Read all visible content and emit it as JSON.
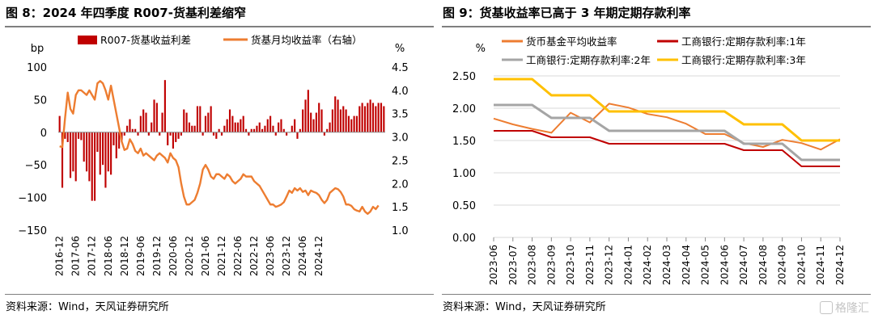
{
  "left": {
    "figure_title": "图 8：2024 年四季度 R007-货基利差缩窄",
    "source": "资料来源：Wind，天风证券研究所"
  },
  "right": {
    "figure_title": "图 9：货基收益率已高于 3 年期定期存款利率",
    "source": "资料来源：Wind，天风证券研究所"
  },
  "watermark_text": "格隆汇",
  "chart_data": [
    {
      "type": "bar",
      "title": "",
      "y_left_unit": "bp",
      "y_right_unit": "%",
      "ylim_left": [
        -150,
        100
      ],
      "yticks_left": [
        -150,
        -100,
        -50,
        0,
        50,
        100
      ],
      "ylim_right": [
        1.0,
        4.5
      ],
      "yticks_right": [
        1.0,
        1.5,
        2.0,
        2.5,
        3.0,
        3.5,
        4.0,
        4.5
      ],
      "x_start": "2016-12",
      "x_tick_labels": [
        "2016-12",
        "2017-06",
        "2017-12",
        "2018-06",
        "2018-12",
        "2019-06",
        "2019-12",
        "2020-06",
        "2020-12",
        "2021-06",
        "2021-12",
        "2022-06",
        "2022-12",
        "2023-06",
        "2023-12",
        "2024-06",
        "2024-12"
      ],
      "legend": [
        "R007-货基收益利差",
        "货基月均收益率（右轴）"
      ],
      "series": [
        {
          "name": "R007-货基收益利差",
          "kind": "bar",
          "axis": "left",
          "color": "#c00000",
          "values": [
            25,
            -85,
            -10,
            -15,
            -70,
            -60,
            -75,
            -10,
            -12,
            -45,
            -60,
            -75,
            -105,
            -105,
            -30,
            -65,
            -50,
            -85,
            -60,
            -65,
            -20,
            -40,
            -25,
            -15,
            -5,
            10,
            20,
            5,
            5,
            -5,
            25,
            35,
            30,
            -5,
            15,
            50,
            45,
            -5,
            30,
            80,
            -20,
            -5,
            -25,
            -15,
            -10,
            -5,
            35,
            30,
            15,
            10,
            10,
            40,
            40,
            -5,
            25,
            30,
            40,
            -5,
            -10,
            5,
            -5,
            10,
            20,
            35,
            25,
            15,
            15,
            20,
            25,
            5,
            -5,
            5,
            5,
            10,
            15,
            5,
            10,
            20,
            25,
            10,
            -5,
            15,
            20,
            5,
            -5,
            0,
            10,
            20,
            -10,
            5,
            35,
            50,
            65,
            30,
            20,
            30,
            45,
            35,
            -5,
            5,
            15,
            35,
            55,
            50,
            35,
            40,
            35,
            25,
            20,
            25,
            25,
            40,
            45,
            40,
            45,
            50,
            45,
            40,
            45,
            45,
            40
          ]
        },
        {
          "name": "货基月均收益率（右轴）",
          "kind": "line",
          "axis": "right",
          "color": "#ed7d31",
          "values": [
            2.8,
            2.78,
            3.4,
            3.95,
            3.6,
            3.5,
            3.9,
            4.0,
            4.0,
            3.95,
            3.9,
            4.0,
            3.9,
            3.8,
            4.15,
            4.2,
            4.15,
            4.0,
            3.8,
            4.1,
            3.8,
            3.5,
            3.2,
            2.9,
            2.72,
            2.75,
            2.95,
            2.85,
            2.7,
            2.65,
            2.75,
            2.6,
            2.65,
            2.6,
            2.55,
            2.5,
            2.6,
            2.65,
            2.6,
            2.55,
            2.45,
            2.65,
            2.55,
            2.5,
            2.35,
            2.0,
            1.72,
            1.55,
            1.55,
            1.6,
            1.65,
            1.8,
            2.0,
            2.3,
            2.4,
            2.3,
            2.15,
            2.1,
            2.2,
            2.2,
            2.15,
            2.1,
            2.2,
            2.15,
            2.05,
            2.0,
            2.05,
            2.1,
            2.2,
            2.15,
            2.15,
            2.15,
            2.05,
            2.0,
            1.95,
            1.85,
            1.75,
            1.65,
            1.55,
            1.55,
            1.5,
            1.52,
            1.55,
            1.6,
            1.72,
            1.85,
            1.8,
            1.9,
            1.85,
            1.9,
            1.82,
            1.85,
            1.75,
            1.85,
            1.82,
            1.8,
            1.75,
            1.65,
            1.58,
            1.65,
            1.8,
            1.85,
            1.9,
            1.88,
            1.82,
            1.72,
            1.55,
            1.55,
            1.52,
            1.45,
            1.42,
            1.4,
            1.5,
            1.4,
            1.35,
            1.4,
            1.5,
            1.45,
            1.53
          ]
        }
      ]
    },
    {
      "type": "line",
      "title": "",
      "y_unit": "%",
      "ylim": [
        0.0,
        2.5
      ],
      "yticks": [
        0.0,
        0.5,
        1.0,
        1.5,
        2.0,
        2.5
      ],
      "categories": [
        "2023-06",
        "2023-07",
        "2023-08",
        "2023-09",
        "2023-10",
        "2023-11",
        "2023-12",
        "2024-01",
        "2024-02",
        "2024-03",
        "2024-04",
        "2024-05",
        "2024-06",
        "2024-07",
        "2024-08",
        "2024-09",
        "2024-10",
        "2024-11",
        "2024-12"
      ],
      "legend_placement": "top",
      "series": [
        {
          "name": "货币基金平均收益率",
          "color": "#ed7d31",
          "width": 2,
          "values": [
            1.84,
            1.75,
            1.68,
            1.62,
            1.93,
            1.78,
            2.07,
            2.01,
            1.91,
            1.86,
            1.76,
            1.6,
            1.6,
            1.46,
            1.4,
            1.51,
            1.46,
            1.36,
            1.52
          ]
        },
        {
          "name": "工商银行:定期存款利率:1年",
          "color": "#c00000",
          "width": 2,
          "values": [
            1.65,
            1.65,
            1.65,
            1.55,
            1.55,
            1.55,
            1.45,
            1.45,
            1.45,
            1.45,
            1.45,
            1.45,
            1.45,
            1.35,
            1.35,
            1.35,
            1.1,
            1.1,
            1.1
          ]
        },
        {
          "name": "工商银行:定期存款利率:2年",
          "color": "#a5a5a5",
          "width": 3,
          "values": [
            2.05,
            2.05,
            2.05,
            1.85,
            1.85,
            1.85,
            1.65,
            1.65,
            1.65,
            1.65,
            1.65,
            1.65,
            1.65,
            1.45,
            1.45,
            1.45,
            1.2,
            1.2,
            1.2
          ]
        },
        {
          "name": "工商银行:定期存款利率:3年",
          "color": "#ffc000",
          "width": 3,
          "values": [
            2.45,
            2.45,
            2.45,
            2.2,
            2.2,
            2.2,
            1.95,
            1.95,
            1.95,
            1.95,
            1.95,
            1.95,
            1.95,
            1.75,
            1.75,
            1.75,
            1.5,
            1.5,
            1.5
          ]
        }
      ]
    }
  ]
}
